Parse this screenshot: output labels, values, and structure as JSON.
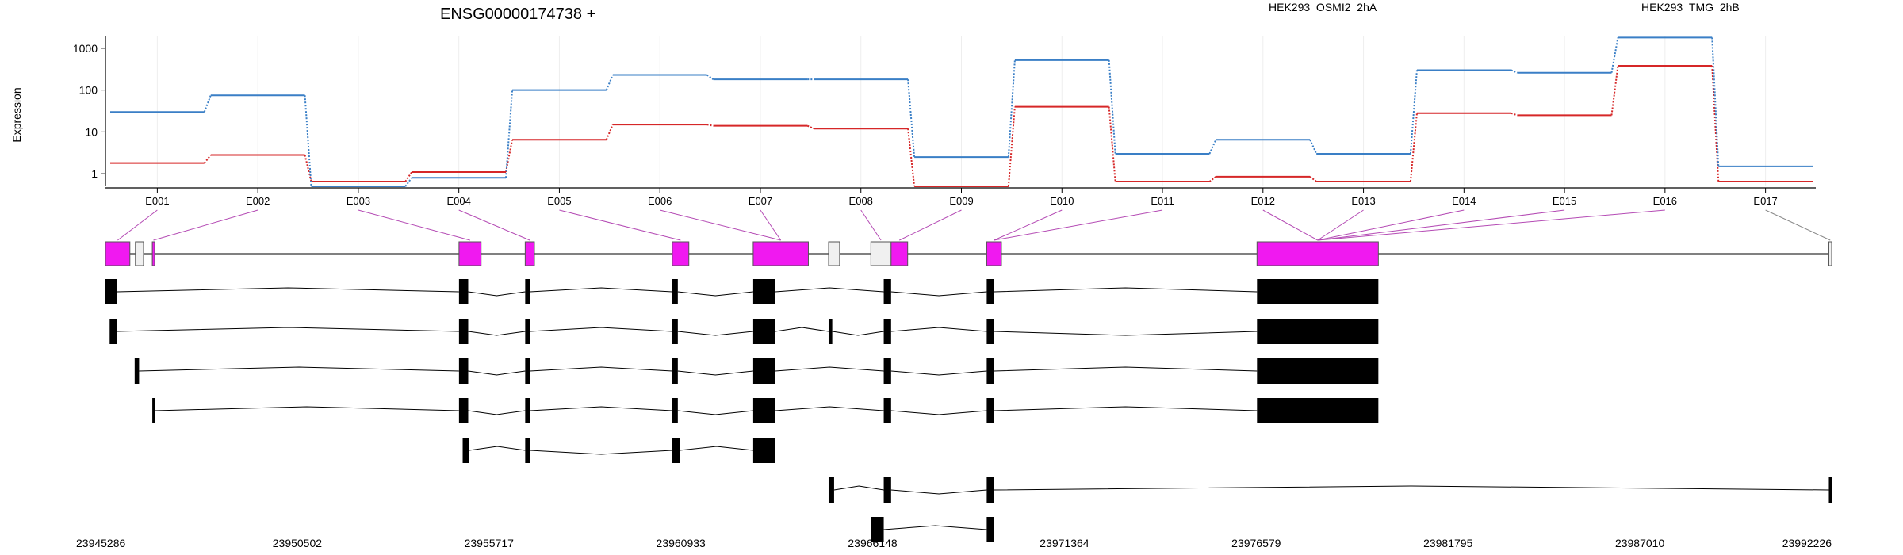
{
  "chart_data": {
    "type": "line",
    "title": "ENSG00000174738 +",
    "ylabel": "Expression",
    "y_scale": "log10",
    "ylim": [
      0.5,
      2000
    ],
    "y_ticks": [
      1,
      10,
      100,
      1000
    ],
    "y_tick_labels": [
      "1",
      "10",
      "100",
      "1000"
    ],
    "grid": true,
    "legend_position": "top-right",
    "categories": [
      "E001",
      "E002",
      "E003",
      "E004",
      "E005",
      "E006",
      "E007",
      "E008",
      "E009",
      "E010",
      "E011",
      "E012",
      "E013",
      "E014",
      "E015",
      "E016",
      "E017"
    ],
    "series": [
      {
        "name": "HEK293_OSMI2_2hA",
        "color": "#d62728",
        "values": [
          1.8,
          2.8,
          0.65,
          1.1,
          6.5,
          15,
          14,
          12,
          0.5,
          40,
          0.65,
          0.85,
          0.65,
          28,
          25,
          380,
          0.65
        ]
      },
      {
        "name": "HEK293_TMG_2hB",
        "color": "#3a7fc6",
        "values": [
          30,
          75,
          0.5,
          0.8,
          100,
          230,
          180,
          180,
          2.5,
          520,
          3,
          6.5,
          3,
          300,
          260,
          1800,
          1.5
        ]
      }
    ],
    "gene_model": {
      "color": "#f019f0",
      "coordinate_ticks": [
        "23945286",
        "23950502",
        "23955717",
        "23960933",
        "23966148",
        "23971364",
        "23976579",
        "23981795",
        "23987010",
        "23992226"
      ],
      "exons": [
        {
          "start": 23945286,
          "end": 23945950,
          "highlight": true
        },
        {
          "start": 23946100,
          "end": 23946320,
          "highlight": false
        },
        {
          "start": 23946560,
          "end": 23946620,
          "highlight": true
        },
        {
          "start": 23954900,
          "end": 23955500,
          "highlight": true
        },
        {
          "start": 23956700,
          "end": 23956950,
          "highlight": true
        },
        {
          "start": 23960700,
          "end": 23961150,
          "highlight": true
        },
        {
          "start": 23962900,
          "end": 23964400,
          "highlight": true
        },
        {
          "start": 23964950,
          "end": 23965250,
          "highlight": false
        },
        {
          "start": 23966100,
          "end": 23966650,
          "highlight": false
        },
        {
          "start": 23966650,
          "end": 23967100,
          "highlight": true
        },
        {
          "start": 23969250,
          "end": 23969650,
          "highlight": true
        },
        {
          "start": 23976600,
          "end": 23979900,
          "highlight": true
        },
        {
          "start": 23992150,
          "end": 23992226,
          "highlight": false
        }
      ],
      "transcripts": [
        {
          "exons": [
            [
              23945286,
              23945600
            ],
            [
              23954900,
              23955150
            ],
            [
              23956700,
              23956830
            ],
            [
              23960700,
              23960850
            ],
            [
              23962900,
              23963500
            ],
            [
              23966450,
              23966650
            ],
            [
              23969250,
              23969450
            ],
            [
              23976600,
              23979900
            ]
          ]
        },
        {
          "exons": [
            [
              23945400,
              23945600
            ],
            [
              23954900,
              23955150
            ],
            [
              23956700,
              23956830
            ],
            [
              23960700,
              23960850
            ],
            [
              23962900,
              23963500
            ],
            [
              23964950,
              23965050
            ],
            [
              23966450,
              23966650
            ],
            [
              23969250,
              23969450
            ],
            [
              23976600,
              23979900
            ]
          ]
        },
        {
          "exons": [
            [
              23946080,
              23946200
            ],
            [
              23954900,
              23955150
            ],
            [
              23956700,
              23956830
            ],
            [
              23960700,
              23960850
            ],
            [
              23962900,
              23963500
            ],
            [
              23966450,
              23966650
            ],
            [
              23969250,
              23969450
            ],
            [
              23976600,
              23979900
            ]
          ]
        },
        {
          "exons": [
            [
              23946560,
              23946620
            ],
            [
              23954900,
              23955150
            ],
            [
              23956700,
              23956830
            ],
            [
              23960700,
              23960850
            ],
            [
              23962900,
              23963500
            ],
            [
              23966450,
              23966650
            ],
            [
              23969250,
              23969450
            ],
            [
              23976600,
              23979900
            ]
          ]
        },
        {
          "exons": [
            [
              23955000,
              23955180
            ],
            [
              23956700,
              23956830
            ],
            [
              23960700,
              23960900
            ],
            [
              23962900,
              23963500
            ]
          ]
        },
        {
          "exons": [
            [
              23964950,
              23965100
            ],
            [
              23966450,
              23966650
            ],
            [
              23969250,
              23969450
            ],
            [
              23992150,
              23992226
            ]
          ]
        },
        {
          "exons": [
            [
              23966100,
              23966450
            ],
            [
              23969250,
              23969450
            ]
          ]
        }
      ]
    }
  }
}
